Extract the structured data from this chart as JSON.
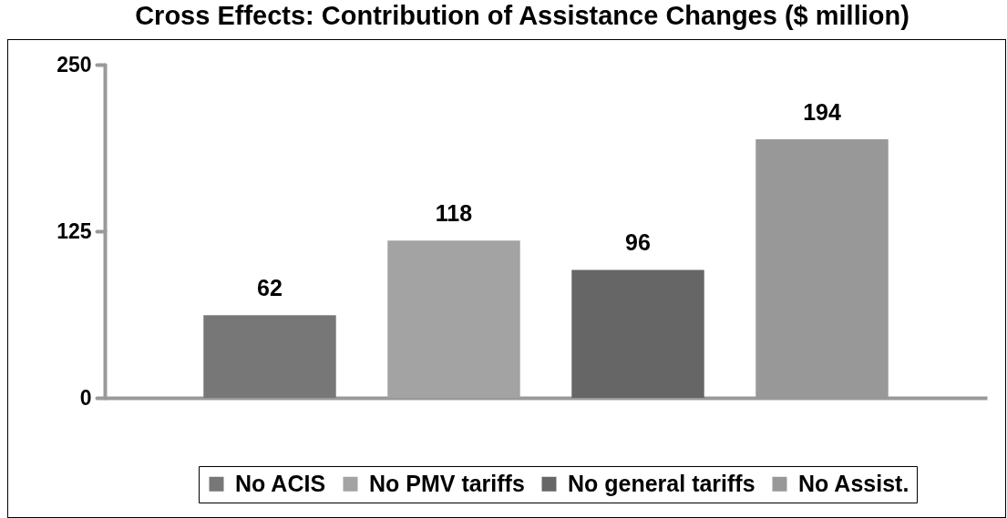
{
  "chart_data": {
    "type": "bar",
    "title": "Cross Effects: Contribution of Assistance Changes ($ million)",
    "categories": [
      null,
      null,
      null,
      null
    ],
    "series": [
      {
        "name": "No ACIS",
        "color": "#777777",
        "values": [
          62,
          null,
          null,
          null
        ]
      },
      {
        "name": "No PMV tariffs",
        "color": "#a3a3a3",
        "values": [
          null,
          118,
          null,
          null
        ]
      },
      {
        "name": "No general tariffs",
        "color": "#666666",
        "values": [
          null,
          null,
          96,
          null
        ]
      },
      {
        "name": "No Assist.",
        "color": "#989898",
        "values": [
          null,
          null,
          null,
          194
        ]
      }
    ],
    "ylim": [
      0,
      250
    ],
    "yticks": [
      0,
      125,
      250
    ],
    "data_labels": true,
    "legend": "bottom",
    "tick_labels": "y"
  }
}
